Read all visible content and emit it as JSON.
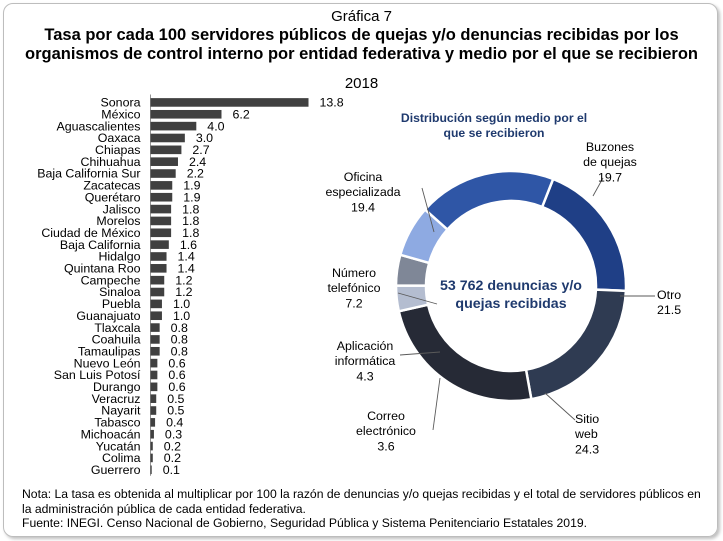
{
  "caption": "Gráfica 7",
  "title": "Tasa por cada 100 servidores públicos de quejas y/o denuncias recibidas por los organismos de control interno por entidad federativa y medio por el que se recibieron",
  "year": "2018",
  "chart_data": [
    {
      "type": "bar",
      "orientation": "horizontal",
      "categories": [
        "Sonora",
        "México",
        "Aguascalientes",
        "Oaxaca",
        "Chiapas",
        "Chihuahua",
        "Baja California Sur",
        "Zacatecas",
        "Querétaro",
        "Jalisco",
        "Morelos",
        "Ciudad de México",
        "Baja California",
        "Hidalgo",
        "Quintana Roo",
        "Campeche",
        "Sinaloa",
        "Puebla",
        "Guanajuato",
        "Tlaxcala",
        "Coahuila",
        "Tamaulipas",
        "Nuevo León",
        "San Luis Potosí",
        "Durango",
        "Veracruz",
        "Nayarit",
        "Tabasco",
        "Michoacán",
        "Yucatán",
        "Colima",
        "Guerrero"
      ],
      "values": [
        13.8,
        6.2,
        4.0,
        3.0,
        2.7,
        2.4,
        2.2,
        1.9,
        1.9,
        1.8,
        1.8,
        1.8,
        1.6,
        1.4,
        1.4,
        1.2,
        1.2,
        1.0,
        1.0,
        0.8,
        0.8,
        0.8,
        0.6,
        0.6,
        0.6,
        0.5,
        0.5,
        0.4,
        0.3,
        0.2,
        0.2,
        0.1
      ],
      "labels": [
        "13.8",
        "6.2",
        "4.0",
        "3.0",
        "2.7",
        "2.4",
        "2.2",
        "1.9",
        "1.9",
        "1.8",
        "1.8",
        "1.8",
        "1.6",
        "1.4",
        "1.4",
        "1.2",
        "1.2",
        "1.0",
        "1.0",
        "0.8",
        "0.8",
        "0.8",
        "0.6",
        "0.6",
        "0.6",
        "0.5",
        "0.5",
        "0.4",
        "0.3",
        "0.2",
        "0.2",
        "0.1"
      ],
      "bar_color": "#404040"
    },
    {
      "type": "pie",
      "subtype": "donut",
      "title": [
        "Distribución según medio por el",
        "que se recibieron"
      ],
      "center_text": [
        "53 762 denuncias y/o",
        "quejas recibidas"
      ],
      "slices": [
        {
          "name": [
            "Buzones",
            "de quejas"
          ],
          "value": 19.7,
          "label": "19.7",
          "color": "#1f3f86"
        },
        {
          "name": [
            "Otro"
          ],
          "value": 21.5,
          "label": "21.5",
          "color": "#2f3b52"
        },
        {
          "name": [
            "Sitio",
            "web"
          ],
          "value": 24.3,
          "label": "24.3",
          "color": "#262a36"
        },
        {
          "name": [
            "Correo",
            "electrónico"
          ],
          "value": 3.6,
          "label": "3.6",
          "color": "#b4bdd0"
        },
        {
          "name": [
            "Aplicación",
            "informática"
          ],
          "value": 4.3,
          "label": "4.3",
          "color": "#7f8797"
        },
        {
          "name": [
            "Número",
            "telefónico"
          ],
          "value": 7.2,
          "label": "7.2",
          "color": "#8eaae2"
        },
        {
          "name": [
            "Oficina",
            "especializada"
          ],
          "value": 19.4,
          "label": "19.4",
          "color": "#2f56a6"
        }
      ],
      "title_color": "#1f3a6e",
      "center_text_color": "#1f3a6e"
    }
  ],
  "notes": {
    "nota": "Nota: La tasa es obtenida al multiplicar por 100 la razón de denuncias y/o quejas recibidas y el total de servidores públicos en la administración pública de cada entidad federativa.",
    "fuente": "Fuente: INEGI. Censo Nacional de Gobierno, Seguridad Pública y Sistema Penitenciario Estatales 2019."
  }
}
